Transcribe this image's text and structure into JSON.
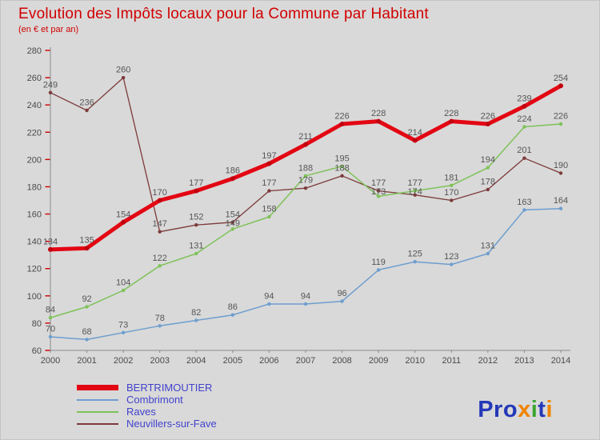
{
  "chart_data": {
    "type": "line",
    "title": "Evolution des Impôts locaux pour la Commune par Habitant",
    "subtitle": "(en € et par an)",
    "x": [
      2000,
      2001,
      2002,
      2003,
      2004,
      2005,
      2006,
      2007,
      2008,
      2009,
      2010,
      2011,
      2012,
      2013,
      2014
    ],
    "ylim": [
      60,
      280
    ],
    "ytick_step": 20,
    "grid": false,
    "legend_position": "bottom-left",
    "axis_color": "#8a8a8a",
    "tick_color": "#cc0000",
    "label_color": "#555555",
    "series": [
      {
        "name": "BERTRIMOUTIER",
        "color": "#e30613",
        "marker_color": "#c1000f",
        "line_width": 5,
        "values": [
          134,
          135,
          154,
          170,
          177,
          186,
          197,
          211,
          226,
          228,
          214,
          228,
          226,
          239,
          254
        ]
      },
      {
        "name": "Combrimont",
        "color": "#6d9ecf",
        "line_width": 1.5,
        "values": [
          70,
          68,
          73,
          78,
          82,
          86,
          94,
          94,
          96,
          119,
          125,
          123,
          131,
          163,
          164
        ]
      },
      {
        "name": "Raves",
        "color": "#7ec258",
        "line_width": 1.5,
        "values": [
          84,
          92,
          104,
          122,
          131,
          149,
          158,
          188,
          195,
          173,
          177,
          181,
          194,
          224,
          226
        ]
      },
      {
        "name": "Neuvillers-sur-Fave",
        "color": "#7d3a3a",
        "line_width": 1.3,
        "values": [
          249,
          236,
          260,
          147,
          152,
          154,
          177,
          179,
          188,
          177,
          174,
          170,
          178,
          201,
          190
        ]
      }
    ]
  },
  "logo": {
    "text": "Proxiti",
    "letters": [
      {
        "ch": "P",
        "color": "#2438b8"
      },
      {
        "ch": "r",
        "color": "#2438b8"
      },
      {
        "ch": "o",
        "color": "#2438b8"
      },
      {
        "ch": "x",
        "color": "#f08300"
      },
      {
        "ch": "i",
        "color": "#3aa52f"
      },
      {
        "ch": "t",
        "color": "#2438b8"
      },
      {
        "ch": "i",
        "color": "#f08300"
      }
    ]
  }
}
